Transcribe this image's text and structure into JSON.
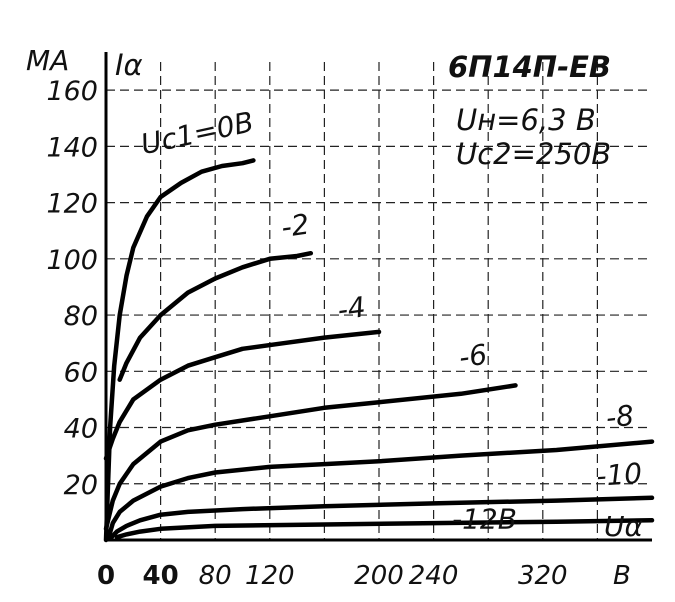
{
  "chart_data": {
    "type": "line",
    "title": "6П14П-ЕВ",
    "conditions": [
      "Uн=6,3 B",
      "Uc2=250B"
    ],
    "ylabel": "Iα",
    "yunit": "MA",
    "xlabel": "Uα",
    "xunit": "B",
    "xlim": [
      0,
      400
    ],
    "ylim": [
      0,
      170
    ],
    "grid": true,
    "x_ticks": [
      "0",
      "40",
      "80",
      "120",
      "200",
      "240",
      "320"
    ],
    "x_tick_values": [
      0,
      40,
      80,
      120,
      200,
      240,
      320
    ],
    "y_ticks": [
      "20",
      "40",
      "60",
      "80",
      "100",
      "120",
      "140",
      "160"
    ],
    "y_tick_values": [
      20,
      40,
      60,
      80,
      100,
      120,
      140,
      160
    ],
    "series": [
      {
        "name": "Uc1=0B",
        "x": [
          0,
          3,
          6,
          10,
          15,
          20,
          30,
          40,
          55,
          70,
          85,
          100,
          108
        ],
        "y": [
          0,
          40,
          62,
          80,
          94,
          104,
          115,
          122,
          127,
          131,
          133,
          134,
          135
        ]
      },
      {
        "name": "-2",
        "x": [
          10,
          15,
          25,
          40,
          60,
          80,
          100,
          120,
          140,
          150
        ],
        "y": [
          57,
          63,
          72,
          80,
          88,
          93,
          97,
          100,
          101,
          102
        ]
      },
      {
        "name": "-4",
        "x": [
          0,
          5,
          10,
          20,
          40,
          60,
          80,
          100,
          130,
          160,
          200
        ],
        "y": [
          29,
          36,
          42,
          50,
          57,
          62,
          65,
          68,
          70,
          72,
          74
        ]
      },
      {
        "name": "-6",
        "x": [
          0,
          5,
          10,
          20,
          40,
          60,
          80,
          120,
          160,
          200,
          260,
          300
        ],
        "y": [
          4,
          14,
          20,
          27,
          35,
          39,
          41,
          44,
          47,
          49,
          52,
          55
        ]
      },
      {
        "name": "-8",
        "x": [
          2,
          5,
          10,
          20,
          40,
          60,
          80,
          120,
          160,
          200,
          260,
          330,
          400
        ],
        "y": [
          1,
          6,
          10,
          14,
          19,
          22,
          24,
          26,
          27,
          28,
          30,
          32,
          35
        ]
      },
      {
        "name": "-10",
        "x": [
          4,
          8,
          15,
          25,
          40,
          60,
          100,
          160,
          240,
          330,
          400
        ],
        "y": [
          1,
          3,
          5,
          7,
          9,
          10,
          11,
          12,
          13,
          14,
          15
        ]
      },
      {
        "name": "-12B",
        "x": [
          8,
          15,
          25,
          40,
          80,
          160,
          240,
          330,
          400
        ],
        "y": [
          1,
          2,
          3,
          4,
          5,
          5.5,
          6,
          6.5,
          7
        ]
      }
    ]
  }
}
